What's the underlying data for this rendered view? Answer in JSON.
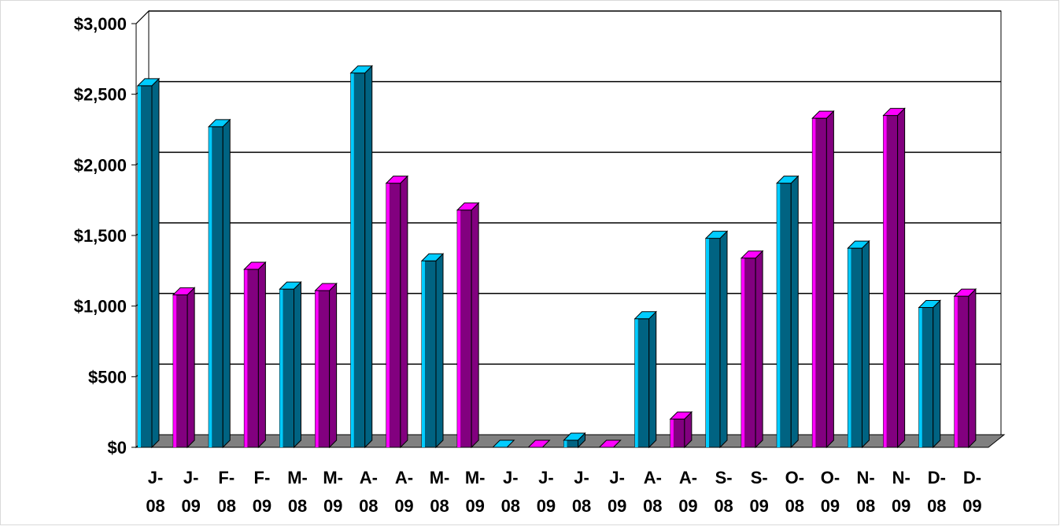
{
  "colors": {
    "series_2008_front": "#006382",
    "series_2008_side": "#00ccff",
    "series_2009_front": "#82007f",
    "series_2009_side": "#ff00ff",
    "floor": "#808080",
    "grid": "#000000",
    "background": "#ffffff"
  },
  "chart_data": {
    "type": "bar",
    "style": "3d-clustered",
    "title": "",
    "xlabel": "",
    "ylabel": "",
    "ylim": [
      0,
      3000
    ],
    "yticks": [
      "$0",
      "$500",
      "$1,000",
      "$1,500",
      "$2,000",
      "$2,500",
      "$3,000"
    ],
    "grid": true,
    "legend": "none",
    "categories": [
      [
        "J-",
        "08"
      ],
      [
        "J-",
        "09"
      ],
      [
        "F-",
        "08"
      ],
      [
        "F-",
        "09"
      ],
      [
        "M-",
        "08"
      ],
      [
        "M-",
        "09"
      ],
      [
        "A-",
        "08"
      ],
      [
        "A-",
        "09"
      ],
      [
        "M-",
        "08"
      ],
      [
        "M-",
        "09"
      ],
      [
        "J-",
        "08"
      ],
      [
        "J-",
        "09"
      ],
      [
        "J-",
        "08"
      ],
      [
        "J-",
        "09"
      ],
      [
        "A-",
        "08"
      ],
      [
        "A-",
        "09"
      ],
      [
        "S-",
        "08"
      ],
      [
        "S-",
        "09"
      ],
      [
        "O-",
        "08"
      ],
      [
        "O-",
        "09"
      ],
      [
        "N-",
        "08"
      ],
      [
        "N-",
        "09"
      ],
      [
        "D-",
        "08"
      ],
      [
        "D-",
        "09"
      ]
    ],
    "values": [
      2560,
      1080,
      2270,
      1260,
      1120,
      1110,
      2650,
      1870,
      1320,
      1680,
      0,
      0,
      50,
      0,
      910,
      200,
      1480,
      1340,
      1870,
      2330,
      1410,
      2350,
      990,
      1070
    ],
    "series_index": [
      0,
      1,
      0,
      1,
      0,
      1,
      0,
      1,
      0,
      1,
      0,
      1,
      0,
      1,
      0,
      1,
      0,
      1,
      0,
      1,
      0,
      1,
      0,
      1
    ]
  }
}
